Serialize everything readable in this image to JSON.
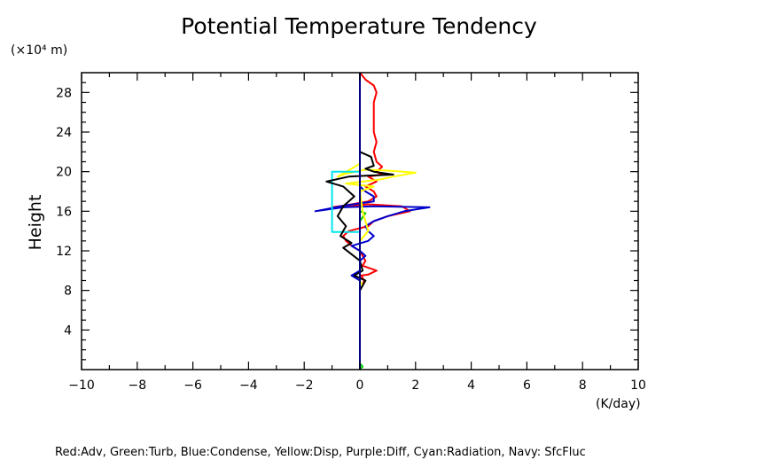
{
  "chart_data": {
    "type": "line",
    "title": "Potential Temperature Tendency",
    "ylabel": "Height",
    "y_unit_label": "(×10⁴ m)",
    "x_unit_label": "(K/day)",
    "xlim": [
      -10,
      10
    ],
    "ylim": [
      0,
      30
    ],
    "x_ticks": [
      -10,
      -8,
      -6,
      -4,
      -2,
      0,
      2,
      4,
      6,
      8,
      10
    ],
    "x_tick_labels": [
      "−10",
      "−8",
      "−6",
      "−4",
      "−2",
      "0",
      "2",
      "4",
      "6",
      "8",
      "10"
    ],
    "y_ticks": [
      4,
      8,
      12,
      16,
      20,
      24,
      28
    ],
    "y_tick_labels": [
      "4",
      "8",
      "12",
      "16",
      "20",
      "24",
      "28"
    ],
    "grid": false,
    "legend_text": "Red:Adv, Green:Turb, Blue:Condense, Yellow:Disp, Purple:Diff, Cyan:Radiation, Navy: SfcFluc",
    "series": [
      {
        "name": "Adv",
        "color": "#ff0000",
        "points": [
          [
            0,
            0
          ],
          [
            0,
            1
          ],
          [
            0,
            2
          ],
          [
            0,
            3
          ],
          [
            0,
            4
          ],
          [
            0,
            5
          ],
          [
            0,
            6
          ],
          [
            0,
            7
          ],
          [
            0,
            8
          ],
          [
            0.1,
            8.5
          ],
          [
            0.15,
            9
          ],
          [
            0.05,
            9.5
          ],
          [
            0.3,
            9.6
          ],
          [
            0.6,
            10
          ],
          [
            0.1,
            10.5
          ],
          [
            0.2,
            11
          ],
          [
            0.1,
            11.5
          ],
          [
            0,
            12
          ],
          [
            -0.3,
            12.5
          ],
          [
            -0.5,
            13
          ],
          [
            -0.6,
            13.5
          ],
          [
            -0.4,
            14
          ],
          [
            0.3,
            14.5
          ],
          [
            0.5,
            15
          ],
          [
            1.0,
            15.5
          ],
          [
            1.8,
            16
          ],
          [
            1.5,
            16.5
          ],
          [
            0.3,
            16.7
          ],
          [
            -0.5,
            16.5
          ],
          [
            -1.0,
            16.4
          ],
          [
            -0.5,
            16.6
          ],
          [
            0.3,
            17
          ],
          [
            0.6,
            17.5
          ],
          [
            0.5,
            18
          ],
          [
            0.2,
            18.5
          ],
          [
            0.6,
            19
          ],
          [
            0.3,
            19.5
          ],
          [
            0.8,
            19.7
          ],
          [
            0.6,
            20
          ],
          [
            0.8,
            20.5
          ],
          [
            0.6,
            21
          ],
          [
            0.5,
            22
          ],
          [
            0.6,
            23
          ],
          [
            0.5,
            24
          ],
          [
            0.5,
            26
          ],
          [
            0.5,
            27
          ],
          [
            0.6,
            28
          ],
          [
            0.5,
            28.7
          ],
          [
            0.2,
            29.3
          ],
          [
            0,
            30
          ]
        ]
      },
      {
        "name": "Turb",
        "color": "#00cc00",
        "points": [
          [
            0,
            0
          ],
          [
            0.1,
            0.3
          ],
          [
            0,
            0.6
          ],
          [
            0,
            1
          ],
          [
            0,
            4
          ],
          [
            0,
            8
          ],
          [
            0,
            12
          ],
          [
            0,
            15
          ],
          [
            0.2,
            15.8
          ],
          [
            0,
            16
          ],
          [
            0,
            20
          ],
          [
            0,
            24
          ],
          [
            0,
            30
          ]
        ]
      },
      {
        "name": "Condense",
        "color": "#0000cc",
        "points": [
          [
            0,
            0
          ],
          [
            0,
            6
          ],
          [
            0,
            8
          ],
          [
            0,
            9
          ],
          [
            -0.3,
            9.5
          ],
          [
            0,
            10
          ],
          [
            0,
            11
          ],
          [
            0.2,
            11.5
          ],
          [
            0,
            12
          ],
          [
            -0.3,
            12.5
          ],
          [
            0.3,
            13
          ],
          [
            0.5,
            13.5
          ],
          [
            0.3,
            14
          ],
          [
            0.2,
            14.5
          ],
          [
            0.5,
            15
          ],
          [
            1.0,
            15.5
          ],
          [
            1.6,
            16
          ],
          [
            2.5,
            16.4
          ],
          [
            0.5,
            16.5
          ],
          [
            -0.6,
            16.4
          ],
          [
            -1.6,
            16
          ],
          [
            -0.5,
            16.6
          ],
          [
            0.5,
            17
          ],
          [
            0.5,
            17.5
          ],
          [
            0.2,
            18
          ],
          [
            0,
            18.5
          ],
          [
            0,
            20
          ],
          [
            0,
            22
          ],
          [
            0,
            30
          ]
        ]
      },
      {
        "name": "Disp",
        "color": "#ffff00",
        "points": [
          [
            0,
            0
          ],
          [
            0,
            8
          ],
          [
            0.1,
            8.5
          ],
          [
            0,
            9
          ],
          [
            0,
            13
          ],
          [
            0.3,
            14
          ],
          [
            0.1,
            16
          ],
          [
            0,
            18
          ],
          [
            0.5,
            18.5
          ],
          [
            -0.5,
            18.8
          ],
          [
            0.7,
            19.2
          ],
          [
            1.2,
            19.5
          ],
          [
            2.0,
            19.9
          ],
          [
            1.0,
            20.1
          ],
          [
            0.2,
            20.2
          ],
          [
            -0.5,
            19.8
          ],
          [
            -0.8,
            19.5
          ],
          [
            -0.3,
            20.3
          ],
          [
            0,
            20.8
          ],
          [
            0,
            30
          ]
        ]
      },
      {
        "name": "Diff",
        "color": "#800080",
        "points": [
          [
            0,
            0
          ],
          [
            0,
            30
          ]
        ]
      },
      {
        "name": "Radiation",
        "color": "#00e5ee",
        "points": [
          [
            0,
            0
          ],
          [
            0,
            13.9
          ],
          [
            -1.0,
            13.9
          ],
          [
            -1.0,
            20
          ],
          [
            0,
            20
          ],
          [
            0,
            30
          ]
        ]
      },
      {
        "name": "Black",
        "color": "#000000",
        "points": [
          [
            0,
            0
          ],
          [
            0,
            8
          ],
          [
            0.2,
            9
          ],
          [
            -0.2,
            9.5
          ],
          [
            0.1,
            10
          ],
          [
            0,
            11
          ],
          [
            -0.6,
            12.3
          ],
          [
            -0.3,
            12.8
          ],
          [
            -0.7,
            13.5
          ],
          [
            -0.5,
            14.5
          ],
          [
            -0.8,
            15.5
          ],
          [
            -0.6,
            16.5
          ],
          [
            -0.2,
            17.5
          ],
          [
            -0.6,
            18.5
          ],
          [
            -1.2,
            19
          ],
          [
            -0.4,
            19.5
          ],
          [
            0.3,
            19.6
          ],
          [
            1.2,
            19.7
          ],
          [
            0.5,
            20
          ],
          [
            0.2,
            20.3
          ],
          [
            0.5,
            20.6
          ],
          [
            0.4,
            21.5
          ],
          [
            0,
            22
          ],
          [
            0,
            30
          ]
        ]
      },
      {
        "name": "SfcFluc",
        "color": "#000080",
        "points": [
          [
            0,
            0
          ],
          [
            0,
            30
          ]
        ]
      }
    ]
  }
}
